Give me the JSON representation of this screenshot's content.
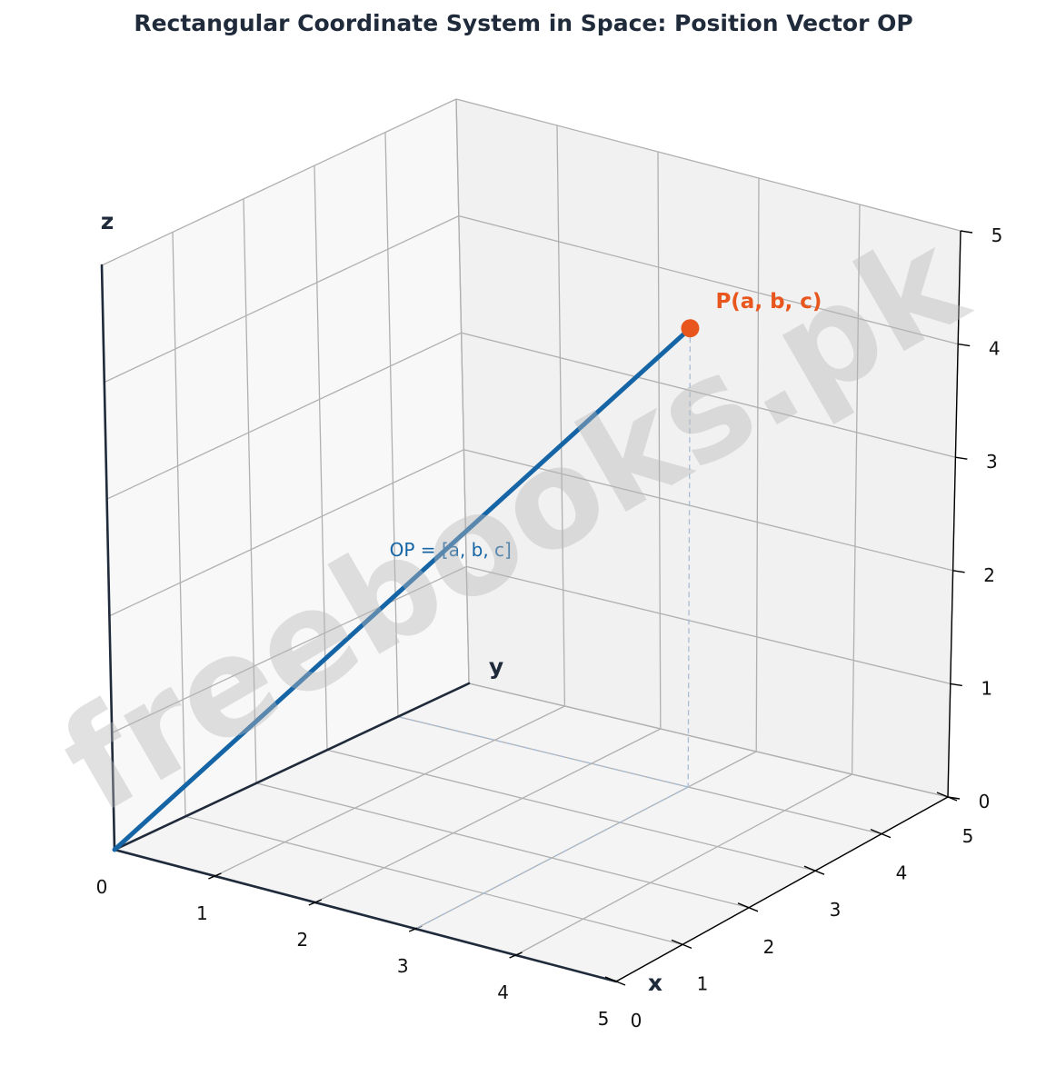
{
  "title": "Rectangular Coordinate System in Space:  Position Vector OP",
  "axes": {
    "x": {
      "label": "x",
      "range": [
        0,
        5
      ],
      "ticks": [
        "0",
        "1",
        "2",
        "3",
        "4",
        "5"
      ]
    },
    "y": {
      "label": "y",
      "range": [
        0,
        5
      ],
      "ticks": [
        "0",
        "1",
        "2",
        "3",
        "4",
        "5"
      ]
    },
    "z": {
      "label": "z",
      "range": [
        0,
        5
      ],
      "ticks": [
        "0",
        "1",
        "2",
        "3",
        "4",
        "5"
      ]
    }
  },
  "grid": true,
  "point": {
    "label": "P(a, b, c)",
    "coords": {
      "x": 3,
      "y": 4,
      "z": 4
    },
    "color": "#e8561e"
  },
  "vector": {
    "label": "OP = [a, b, c]",
    "from": {
      "x": 0,
      "y": 0,
      "z": 0
    },
    "to": {
      "x": 3,
      "y": 4,
      "z": 4
    },
    "color": "#1565a6"
  },
  "watermark": "freebooks.pk",
  "colors": {
    "axis": "#1f2a3a",
    "grid": "#b0b0b0",
    "pane_left": "#f8f8f8",
    "pane_back": "#f1f1f1",
    "pane_floor": "#f4f4f4",
    "projection": "#a9bcd4"
  }
}
